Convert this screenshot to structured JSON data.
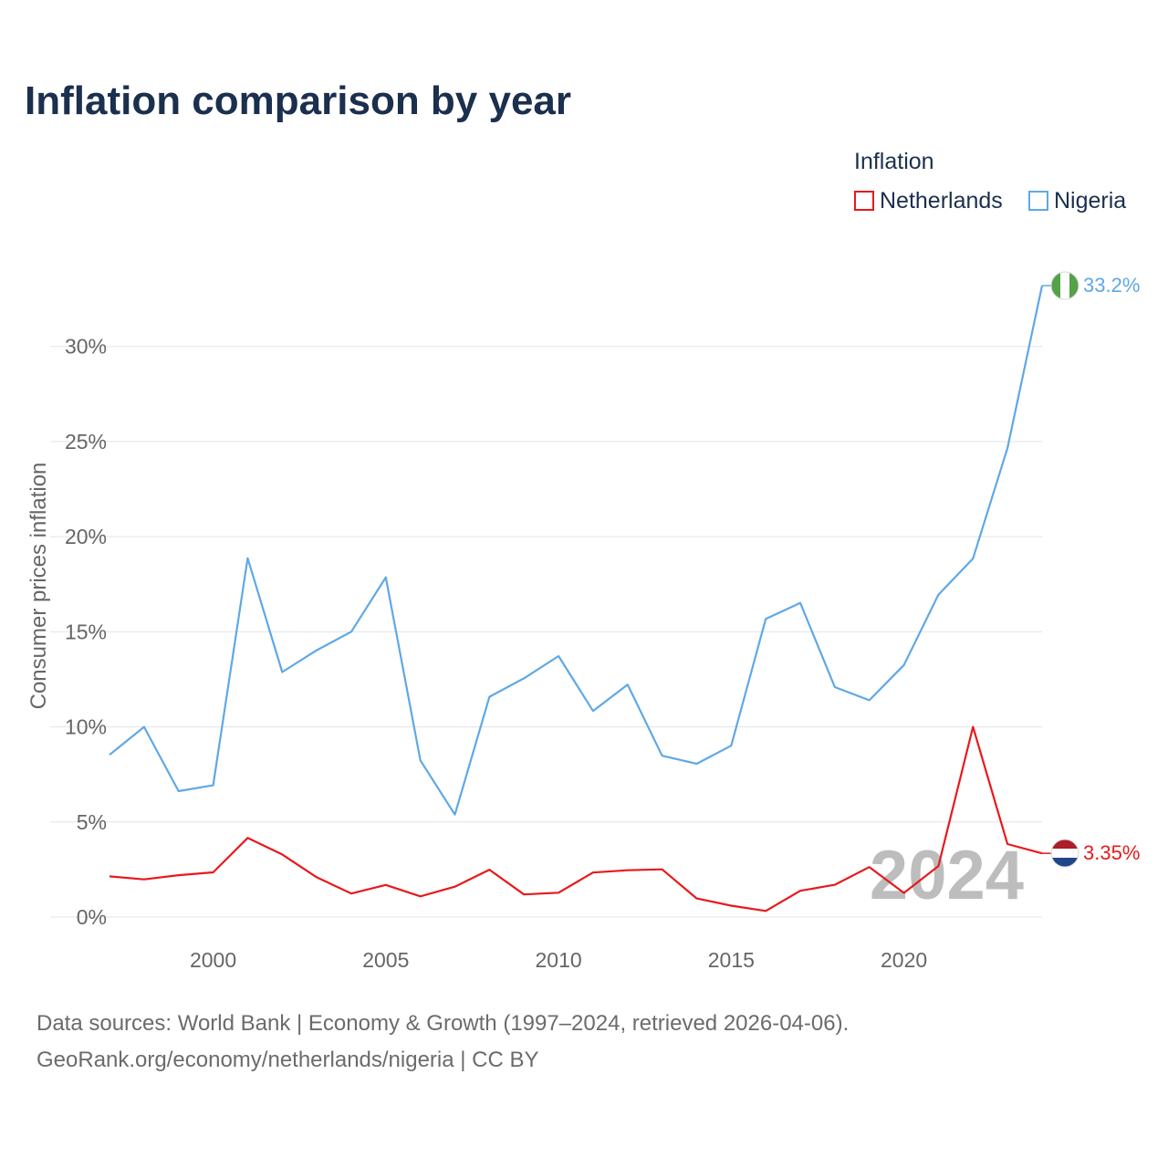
{
  "title": "Inflation comparison by year",
  "legend": {
    "title": "Inflation",
    "items": [
      {
        "label": "Netherlands",
        "color": "#e8191c"
      },
      {
        "label": "Nigeria",
        "color": "#5fa8e6"
      }
    ]
  },
  "footer": {
    "line1": "Data sources: World Bank | Economy & Growth (1997–2024, retrieved 2026-04-06).",
    "line2": "GeoRank.org/economy/netherlands/nigeria | CC BY"
  },
  "chart_data": {
    "type": "line",
    "title": "Inflation comparison by year",
    "xlabel": "",
    "ylabel": "Consumer prices inflation",
    "xlim": [
      1997,
      2024
    ],
    "ylim": [
      0,
      33.2
    ],
    "x_ticks": [
      2000,
      2005,
      2010,
      2015,
      2020
    ],
    "y_ticks": [
      0,
      5,
      10,
      15,
      20,
      25,
      30
    ],
    "y_tick_labels": [
      "0%",
      "5%",
      "10%",
      "15%",
      "20%",
      "25%",
      "30%"
    ],
    "grid": true,
    "year_watermark": "2024",
    "x": [
      1997,
      1998,
      1999,
      2000,
      2001,
      2002,
      2003,
      2004,
      2005,
      2006,
      2007,
      2008,
      2009,
      2010,
      2011,
      2012,
      2013,
      2014,
      2015,
      2016,
      2017,
      2018,
      2019,
      2020,
      2021,
      2022,
      2023,
      2024
    ],
    "series": [
      {
        "name": "Nigeria",
        "color": "#5fa8e6",
        "end_label": "33.2%",
        "values": [
          8.53,
          10.0,
          6.62,
          6.93,
          18.87,
          12.88,
          14.03,
          15.0,
          17.86,
          8.24,
          5.39,
          11.58,
          12.55,
          13.72,
          10.84,
          12.22,
          8.48,
          8.06,
          9.01,
          15.68,
          16.52,
          12.09,
          11.4,
          13.25,
          16.95,
          18.85,
          24.66,
          33.2
        ]
      },
      {
        "name": "Netherlands",
        "color": "#e8191c",
        "end_label": "3.35%",
        "values": [
          2.14,
          1.98,
          2.2,
          2.35,
          4.16,
          3.29,
          2.09,
          1.24,
          1.69,
          1.09,
          1.6,
          2.49,
          1.19,
          1.28,
          2.34,
          2.46,
          2.51,
          0.98,
          0.6,
          0.32,
          1.38,
          1.7,
          2.63,
          1.27,
          2.68,
          10.0,
          3.84,
          3.35
        ]
      }
    ]
  }
}
